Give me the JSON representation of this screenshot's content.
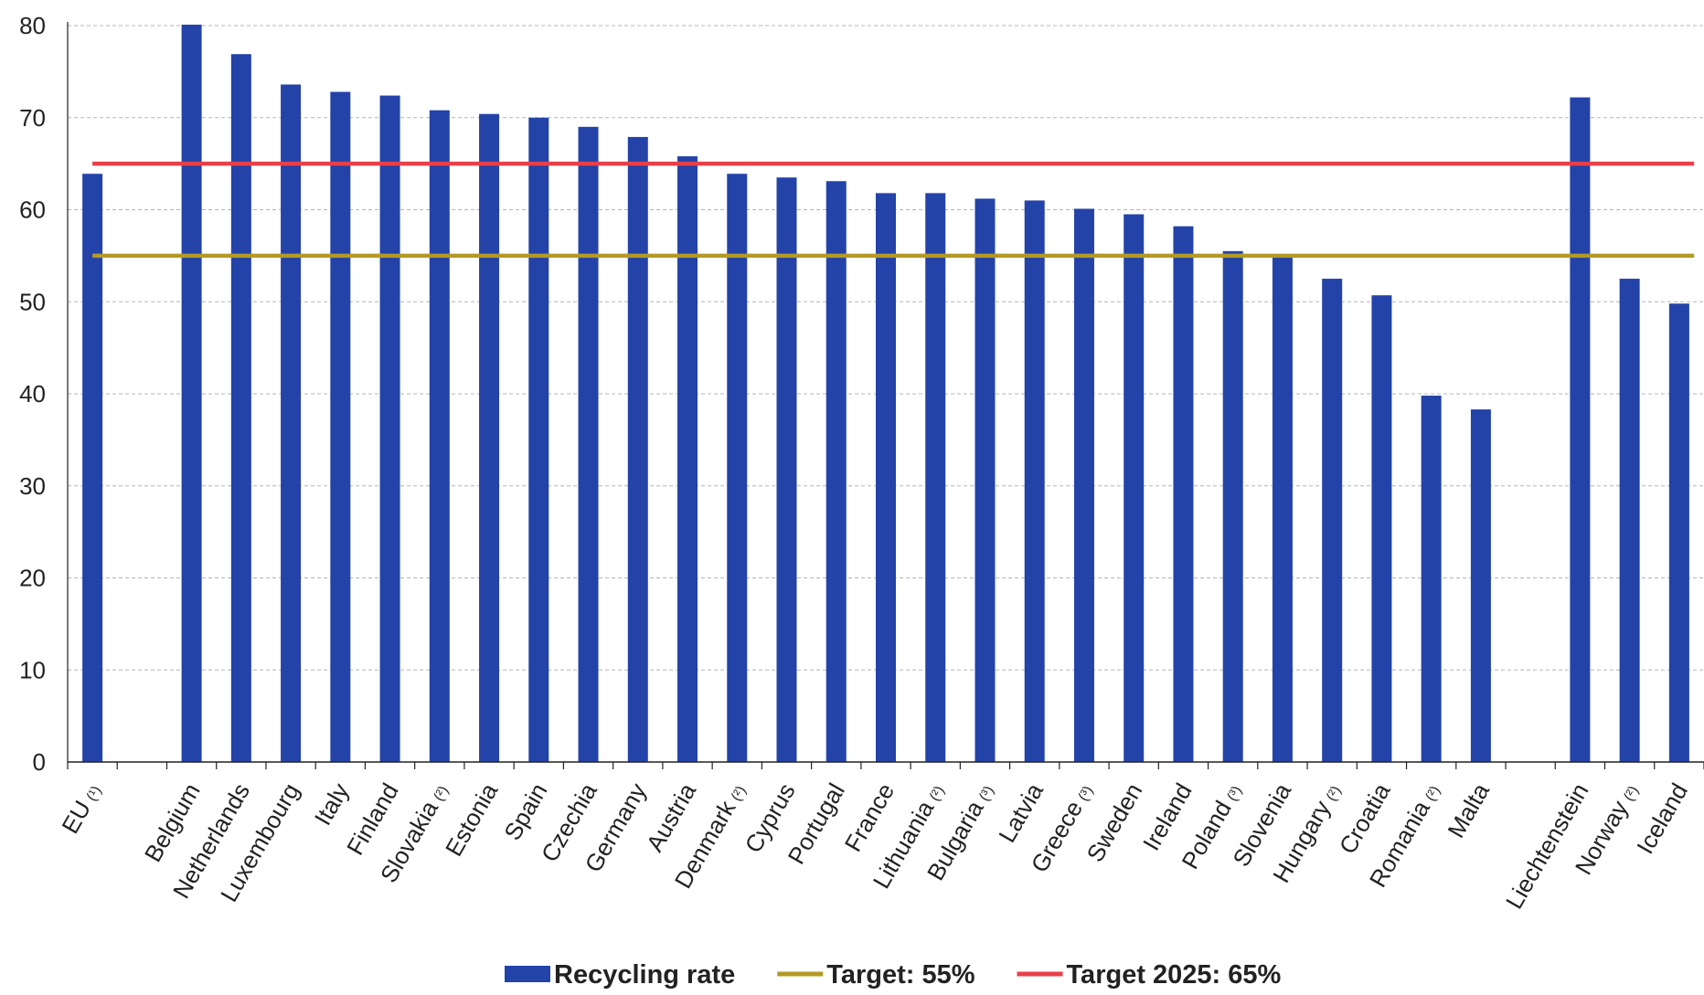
{
  "chart_data": {
    "type": "bar",
    "title": "",
    "xlabel": "",
    "ylabel": "",
    "ylim": [
      0,
      80
    ],
    "yticks": [
      0,
      10,
      20,
      30,
      40,
      50,
      60,
      70,
      80
    ],
    "grid": "horizontal dashed",
    "legend_position": "bottom",
    "categories": [
      {
        "name": "EU",
        "note": "(¹)"
      },
      {
        "name": "",
        "note": ""
      },
      {
        "name": "Belgium",
        "note": ""
      },
      {
        "name": "Netherlands",
        "note": ""
      },
      {
        "name": "Luxembourg",
        "note": ""
      },
      {
        "name": "Italy",
        "note": ""
      },
      {
        "name": "Finland",
        "note": ""
      },
      {
        "name": "Slovakia",
        "note": "(²)"
      },
      {
        "name": "Estonia",
        "note": ""
      },
      {
        "name": "Spain",
        "note": ""
      },
      {
        "name": "Czechia",
        "note": ""
      },
      {
        "name": "Germany",
        "note": ""
      },
      {
        "name": "Austria",
        "note": ""
      },
      {
        "name": "Denmark",
        "note": "(²)"
      },
      {
        "name": "Cyprus",
        "note": ""
      },
      {
        "name": "Portugal",
        "note": ""
      },
      {
        "name": "France",
        "note": ""
      },
      {
        "name": "Lithuania",
        "note": "(²)"
      },
      {
        "name": "Bulgaria",
        "note": "(³)"
      },
      {
        "name": "Latvia",
        "note": ""
      },
      {
        "name": "Greece",
        "note": "(³)"
      },
      {
        "name": "Sweden",
        "note": ""
      },
      {
        "name": "Ireland",
        "note": ""
      },
      {
        "name": "Poland",
        "note": "(³)"
      },
      {
        "name": "Slovenia",
        "note": ""
      },
      {
        "name": "Hungary",
        "note": "(²)"
      },
      {
        "name": "Croatia",
        "note": ""
      },
      {
        "name": "Romania",
        "note": "(²)"
      },
      {
        "name": "Malta",
        "note": ""
      },
      {
        "name": "",
        "note": ""
      },
      {
        "name": "Liechtenstein",
        "note": ""
      },
      {
        "name": "Norway",
        "note": "(²)"
      },
      {
        "name": "Iceland",
        "note": ""
      }
    ],
    "series": [
      {
        "name": "Recycling rate",
        "type": "bar",
        "color": "#2443a8",
        "values": [
          63.9,
          null,
          80.1,
          76.9,
          73.6,
          72.8,
          72.4,
          70.8,
          70.4,
          70.0,
          69.0,
          67.9,
          65.8,
          63.9,
          63.5,
          63.1,
          61.8,
          61.8,
          61.2,
          61.0,
          60.1,
          59.5,
          58.2,
          55.5,
          55.0,
          52.5,
          50.7,
          39.8,
          38.3,
          null,
          72.2,
          52.5,
          49.8
        ]
      },
      {
        "name": "Target: 55%",
        "type": "line",
        "color": "#b39a25",
        "value": 55
      },
      {
        "name": "Target 2025: 65%",
        "type": "line",
        "color": "#e8404a",
        "value": 65
      }
    ]
  }
}
